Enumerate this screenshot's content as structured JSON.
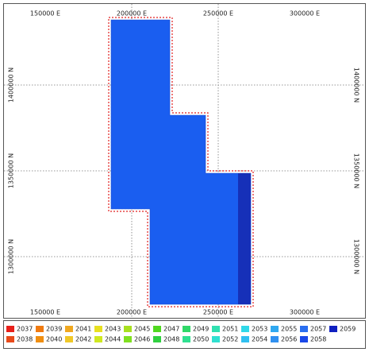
{
  "map": {
    "eastings": [
      "150000 E",
      "200000 E",
      "250000 E",
      "300000 E"
    ],
    "northings": [
      "1400000 N",
      "1350000 N",
      "1300000 N"
    ],
    "legend": [
      {
        "label": "2037",
        "color": "#e8201a"
      },
      {
        "label": "2038",
        "color": "#e84a1a"
      },
      {
        "label": "2039",
        "color": "#f07a10"
      },
      {
        "label": "2040",
        "color": "#f08e10"
      },
      {
        "label": "2041",
        "color": "#f0a820"
      },
      {
        "label": "2042",
        "color": "#f0c828"
      },
      {
        "label": "2043",
        "color": "#e8e020"
      },
      {
        "label": "2044",
        "color": "#d0e820"
      },
      {
        "label": "2045",
        "color": "#a8e020"
      },
      {
        "label": "2046",
        "color": "#80e020"
      },
      {
        "label": "2047",
        "color": "#50d820"
      },
      {
        "label": "2048",
        "color": "#30d040"
      },
      {
        "label": "2049",
        "color": "#30d868"
      },
      {
        "label": "2050",
        "color": "#30e090"
      },
      {
        "label": "2051",
        "color": "#30e0b0"
      },
      {
        "label": "2052",
        "color": "#30e0d0"
      },
      {
        "label": "2053",
        "color": "#30d8e8"
      },
      {
        "label": "2054",
        "color": "#30c0f0"
      },
      {
        "label": "2055",
        "color": "#30a8f0"
      },
      {
        "label": "2056",
        "color": "#3090f0"
      },
      {
        "label": "2057",
        "color": "#2a6ef0"
      },
      {
        "label": "2058",
        "color": "#1a48e8"
      },
      {
        "label": "2059",
        "color": "#1020c0"
      }
    ]
  }
}
